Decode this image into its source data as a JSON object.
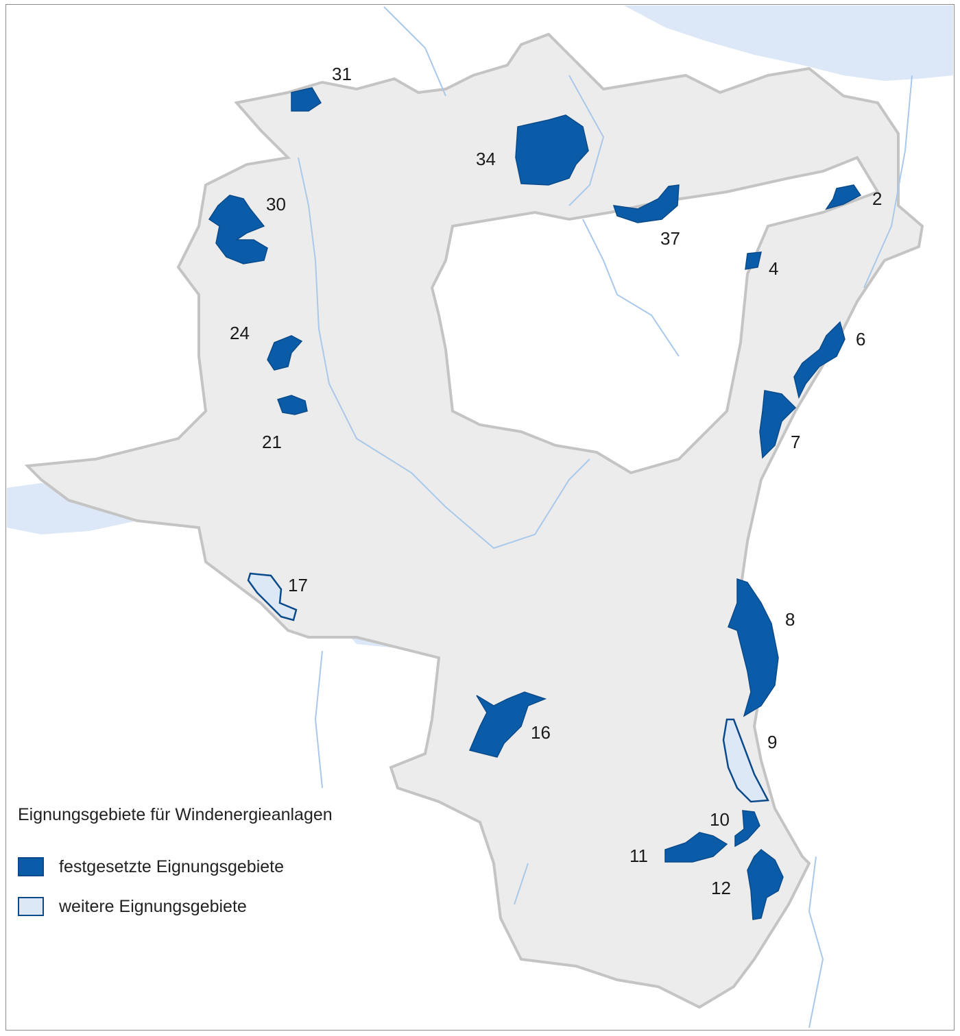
{
  "legend": {
    "title": "Eignungsgebiete für Windenergieanlagen",
    "items": [
      {
        "label": "festgesetzte Eignungsgebiete",
        "color": "#0b5ca8"
      },
      {
        "label": "weitere Eignungsgebiete",
        "color": "#dde8f6"
      }
    ]
  },
  "areas": {
    "a2": {
      "label": "2",
      "category": "festgesetzt"
    },
    "a4": {
      "label": "4",
      "category": "festgesetzt"
    },
    "a6": {
      "label": "6",
      "category": "festgesetzt"
    },
    "a7": {
      "label": "7",
      "category": "festgesetzt"
    },
    "a8": {
      "label": "8",
      "category": "festgesetzt"
    },
    "a9": {
      "label": "9",
      "category": "weitere"
    },
    "a10": {
      "label": "10",
      "category": "festgesetzt"
    },
    "a11": {
      "label": "11",
      "category": "festgesetzt"
    },
    "a12": {
      "label": "12",
      "category": "festgesetzt"
    },
    "a16": {
      "label": "16",
      "category": "festgesetzt"
    },
    "a17": {
      "label": "17",
      "category": "weitere"
    },
    "a21": {
      "label": "21",
      "category": "festgesetzt"
    },
    "a24": {
      "label": "24",
      "category": "festgesetzt"
    },
    "a30": {
      "label": "30",
      "category": "festgesetzt"
    },
    "a31": {
      "label": "31",
      "category": "festgesetzt"
    },
    "a34": {
      "label": "34",
      "category": "festgesetzt"
    },
    "a37": {
      "label": "37",
      "category": "festgesetzt"
    }
  },
  "colors": {
    "canton": "#ececec",
    "border": "#c4c4c4",
    "water": "#dce8f7",
    "river": "#a9c8ea"
  }
}
